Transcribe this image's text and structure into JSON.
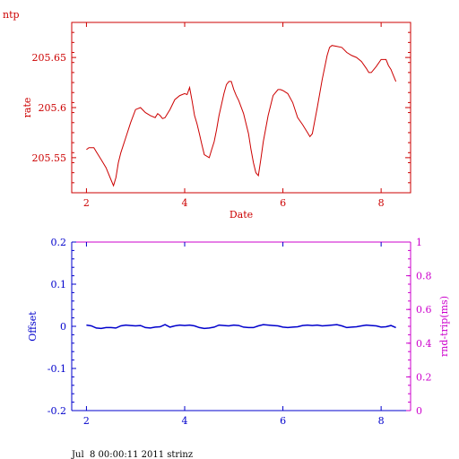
{
  "header_label": "ntp",
  "footer_text": "Jul  8 00:00:11 2011 strinz",
  "colors": {
    "top": "#cc0000",
    "offset": "#0000cc",
    "rtt": "#cc00cc"
  },
  "chart_data": [
    {
      "type": "line",
      "xlabel": "Date",
      "ylabel": "rate",
      "xlim": [
        1.7,
        8.6
      ],
      "ylim": [
        205.515,
        205.685
      ],
      "x_ticks": [
        2,
        4,
        6,
        8
      ],
      "x_tick_labels": [
        "2",
        "4",
        "6",
        "8"
      ],
      "y_ticks": [
        205.55,
        205.6,
        205.65
      ],
      "y_tick_labels": [
        "205.55",
        "205.6",
        "205.65"
      ],
      "grid": false,
      "series": [
        {
          "x": [
            2.0,
            2.05,
            2.15,
            2.2,
            2.3,
            2.4,
            2.5,
            2.55,
            2.6,
            2.65,
            2.7,
            2.8,
            2.9,
            3.0,
            3.1,
            3.2,
            3.3,
            3.4,
            3.45,
            3.5,
            3.55,
            3.6,
            3.7,
            3.8,
            3.9,
            4.0,
            4.05,
            4.1,
            4.15,
            4.2,
            4.25,
            4.3,
            4.35,
            4.4,
            4.5,
            4.55,
            4.6,
            4.65,
            4.7,
            4.8,
            4.85,
            4.9,
            4.95,
            5.0,
            5.05,
            5.1,
            5.2,
            5.3,
            5.35,
            5.4,
            5.45,
            5.5,
            5.55,
            5.6,
            5.7,
            5.8,
            5.9,
            5.95,
            6.0,
            6.1,
            6.2,
            6.3,
            6.4,
            6.5,
            6.55,
            6.6,
            6.7,
            6.8,
            6.9,
            6.95,
            7.0,
            7.1,
            7.2,
            7.3,
            7.4,
            7.5,
            7.6,
            7.7,
            7.75,
            7.8,
            7.9,
            8.0,
            8.1,
            8.15,
            8.2,
            8.25,
            8.3
          ],
          "y": [
            205.558,
            205.56,
            205.56,
            205.556,
            205.548,
            205.54,
            205.528,
            205.522,
            205.53,
            205.545,
            205.555,
            205.57,
            205.585,
            205.598,
            205.6,
            205.595,
            205.592,
            205.59,
            205.594,
            205.592,
            205.589,
            205.59,
            205.598,
            205.608,
            205.612,
            205.614,
            205.613,
            205.62,
            205.607,
            205.592,
            205.584,
            205.574,
            205.563,
            205.553,
            205.55,
            205.558,
            205.566,
            205.578,
            205.592,
            205.614,
            205.623,
            205.626,
            205.626,
            205.618,
            205.612,
            205.607,
            205.594,
            205.574,
            205.558,
            205.545,
            205.535,
            205.532,
            205.548,
            205.566,
            205.592,
            205.612,
            205.618,
            205.618,
            205.617,
            205.614,
            205.605,
            205.59,
            205.583,
            205.575,
            205.571,
            205.574,
            205.6,
            205.628,
            205.652,
            205.66,
            205.662,
            205.661,
            205.66,
            205.655,
            205.652,
            205.65,
            205.646,
            205.639,
            205.635,
            205.635,
            205.641,
            205.648,
            205.648,
            205.642,
            205.638,
            205.632,
            205.626
          ]
        }
      ]
    },
    {
      "type": "line",
      "ylabel": "Offset",
      "y2label": "rnd-trip(ms)",
      "xlim": [
        1.7,
        8.6
      ],
      "ylim": [
        -0.2,
        0.2
      ],
      "y2lim": [
        0,
        1
      ],
      "x_ticks": [
        2,
        4,
        6,
        8
      ],
      "x_tick_labels": [
        "2",
        "4",
        "6",
        "8"
      ],
      "y_ticks": [
        -0.2,
        -0.1,
        0,
        0.1,
        0.2
      ],
      "y_tick_labels": [
        "-0.2",
        "-0.1",
        "0",
        "0.1",
        "0.2"
      ],
      "y2_ticks": [
        0,
        0.2,
        0.4,
        0.6,
        0.8,
        1
      ],
      "y2_tick_labels": [
        "0",
        "0.2",
        "0.4",
        "0.6",
        "0.8",
        "1"
      ],
      "grid": false,
      "series": [
        {
          "x": [
            2.0,
            2.1,
            2.2,
            2.3,
            2.4,
            2.5,
            2.6,
            2.7,
            2.8,
            2.9,
            3.0,
            3.1,
            3.2,
            3.3,
            3.4,
            3.5,
            3.6,
            3.7,
            3.8,
            3.9,
            4.0,
            4.1,
            4.2,
            4.3,
            4.4,
            4.5,
            4.6,
            4.7,
            4.8,
            4.9,
            5.0,
            5.1,
            5.2,
            5.3,
            5.4,
            5.5,
            5.6,
            5.7,
            5.8,
            5.9,
            6.0,
            6.1,
            6.2,
            6.3,
            6.4,
            6.5,
            6.6,
            6.7,
            6.8,
            6.9,
            7.0,
            7.1,
            7.2,
            7.3,
            7.4,
            7.5,
            7.6,
            7.7,
            7.8,
            7.9,
            8.0,
            8.1,
            8.2,
            8.3
          ],
          "y": [
            0.003,
            0.001,
            -0.004,
            -0.005,
            -0.003,
            -0.003,
            -0.004,
            0.001,
            0.003,
            0.002,
            0.001,
            0.002,
            -0.003,
            -0.004,
            -0.002,
            -0.001,
            0.004,
            -0.002,
            0.001,
            0.003,
            0.002,
            0.003,
            0.001,
            -0.003,
            -0.005,
            -0.004,
            -0.002,
            0.003,
            0.002,
            0.001,
            0.003,
            0.002,
            -0.002,
            -0.003,
            -0.003,
            0.001,
            0.004,
            0.003,
            0.002,
            0.001,
            -0.002,
            -0.003,
            -0.002,
            -0.001,
            0.002,
            0.003,
            0.002,
            0.003,
            0.001,
            0.002,
            0.003,
            0.004,
            0.001,
            -0.003,
            -0.002,
            -0.001,
            0.001,
            0.003,
            0.002,
            0.001,
            -0.002,
            -0.001,
            0.002,
            -0.003
          ]
        }
      ]
    }
  ]
}
